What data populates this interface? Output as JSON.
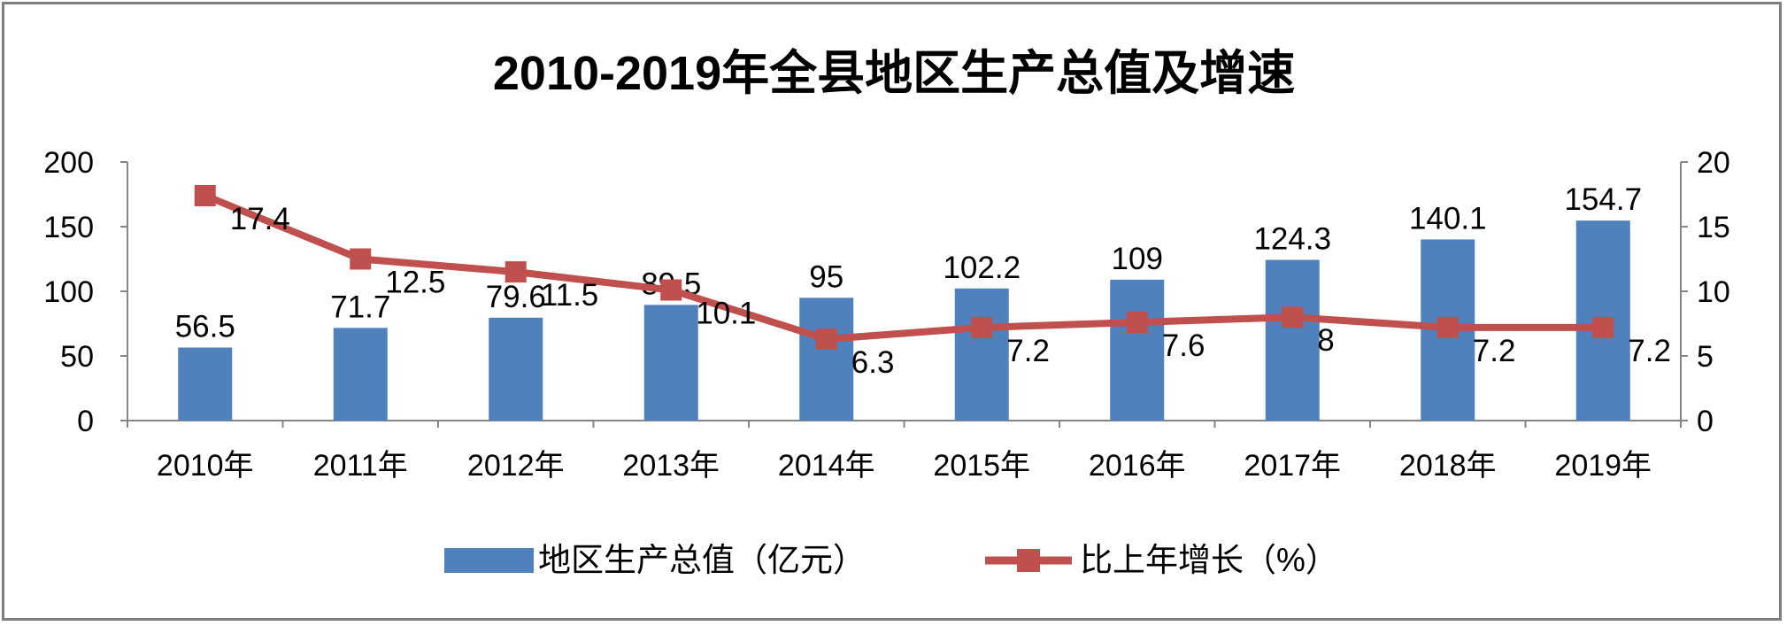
{
  "chart_data": {
    "type": "bar+line",
    "title": "2010-2019年全县地区生产总值及增速",
    "categories": [
      "2010年",
      "2011年",
      "2012年",
      "2013年",
      "2014年",
      "2015年",
      "2016年",
      "2017年",
      "2018年",
      "2019年"
    ],
    "series": [
      {
        "name": "地区生产总值（亿元）",
        "type": "bar",
        "axis": "left",
        "color": "#4f81bd",
        "values": [
          56.5,
          71.7,
          79.6,
          89.5,
          95,
          102.2,
          109,
          124.3,
          140.1,
          154.7
        ]
      },
      {
        "name": "比上年增长（%）",
        "type": "line",
        "axis": "right",
        "color": "#c0504d",
        "marker": "square",
        "values": [
          17.4,
          12.5,
          11.5,
          10.1,
          6.3,
          7.2,
          7.6,
          8,
          7.2,
          7.2
        ]
      }
    ],
    "y_left": {
      "ylim": [
        0,
        200
      ],
      "ticks": [
        "0",
        "50",
        "100",
        "150",
        "200"
      ]
    },
    "y_right": {
      "ylim": [
        0,
        20
      ],
      "ticks": [
        "0",
        "5",
        "10",
        "15",
        "20"
      ]
    },
    "grid": false,
    "legend_position": "bottom"
  }
}
